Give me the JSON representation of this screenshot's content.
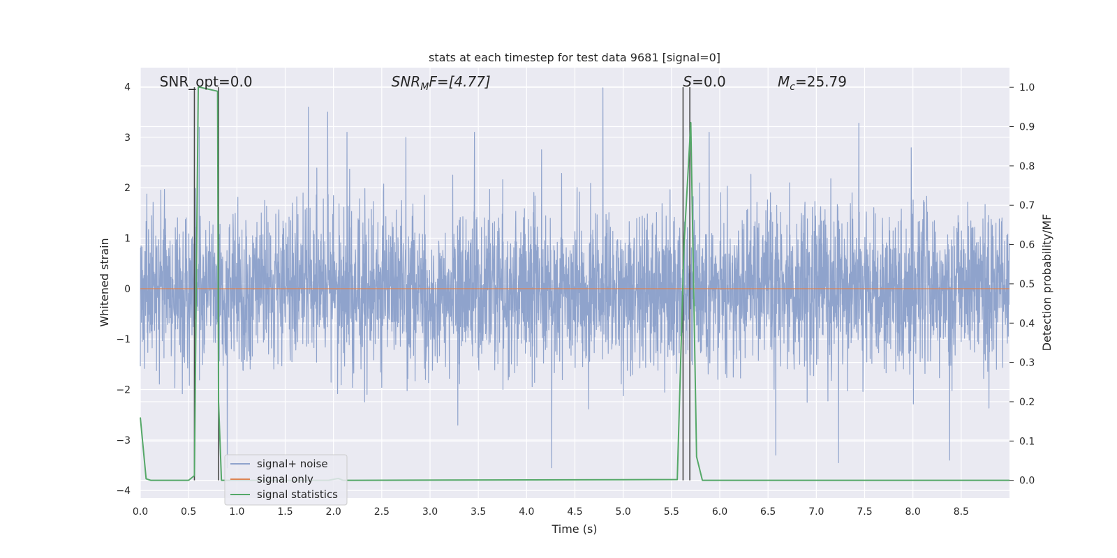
{
  "chart_data": {
    "type": "line",
    "title": "stats at each timestep for test data 9681 [signal=0]",
    "xlabel": "Time (s)",
    "ylabel": "Whitened strain",
    "ylabel_right": "Detection probability/MF",
    "xlim": [
      0,
      9.0
    ],
    "ylim": [
      -4.15,
      4.38
    ],
    "ylim_right": [
      -0.045,
      1.05
    ],
    "x_ticks": [
      0.0,
      0.5,
      1.0,
      1.5,
      2.0,
      2.5,
      3.0,
      3.5,
      4.0,
      4.5,
      5.0,
      5.5,
      6.0,
      6.5,
      7.0,
      7.5,
      8.0,
      8.5
    ],
    "y_ticks": [
      -4,
      -3,
      -2,
      -1,
      0,
      1,
      2,
      3,
      4
    ],
    "y_ticks_right": [
      0.0,
      0.1,
      0.2,
      0.3,
      0.4,
      0.5,
      0.6,
      0.7,
      0.8,
      0.9,
      1.0
    ],
    "grid": true,
    "legend_position": "lower-left",
    "annotations": [
      {
        "main": "SNR_opt=0.0",
        "sub": "",
        "rest": "",
        "x": 0.2
      },
      {
        "main": "SNR",
        "sub": "M",
        "rest": "F=[4.77]",
        "x": 2.6,
        "italic": true
      },
      {
        "main": "S",
        "sub": "",
        "rest": "=0.0",
        "x": 5.62,
        "italic_main": true
      },
      {
        "main": "M",
        "sub": "c",
        "rest": "=25.79",
        "x": 6.6,
        "italic_main": true
      }
    ],
    "vlines": [
      0.56,
      0.81,
      5.62,
      5.69
    ],
    "series": [
      {
        "name": "signal+ noise",
        "color": "#8fa3cc",
        "kind": "noise",
        "seed": 9681,
        "samples": 3600,
        "sigma": 0.78,
        "peaks": [
          {
            "x": 1.74,
            "y": 3.6
          },
          {
            "x": 1.94,
            "y": 3.5
          },
          {
            "x": 4.79,
            "y": 3.98
          },
          {
            "x": 7.44,
            "y": 3.28
          },
          {
            "x": 4.26,
            "y": -3.55
          },
          {
            "x": 7.23,
            "y": -3.45
          },
          {
            "x": 8.38,
            "y": -3.4
          },
          {
            "x": 6.58,
            "y": -3.3
          },
          {
            "x": 0.9,
            "y": -3.55
          },
          {
            "x": 3.46,
            "y": 3.1
          },
          {
            "x": 2.14,
            "y": 3.1
          },
          {
            "x": 0.61,
            "y": 3.2
          },
          {
            "x": 5.89,
            "y": 3.1
          },
          {
            "x": 2.75,
            "y": 3.0
          }
        ]
      },
      {
        "name": "signal only",
        "color": "#dd8452",
        "kind": "flat",
        "value": 0.0
      },
      {
        "name": "signal statistics",
        "color": "#55a868",
        "axis": "right",
        "x": [
          0.0,
          0.06,
          0.11,
          0.5,
          0.56,
          0.6,
          0.62,
          0.8,
          0.81,
          0.84,
          0.87,
          1.95,
          2.05,
          2.1,
          5.56,
          5.63,
          5.7,
          5.76,
          5.82,
          9.0
        ],
        "y": [
          0.16,
          0.004,
          0.0,
          0.0,
          0.012,
          1.0,
          1.0,
          0.99,
          0.2,
          0.0,
          0.0,
          0.0,
          0.005,
          0.0,
          0.002,
          0.6,
          0.91,
          0.06,
          0.0,
          0.0
        ]
      }
    ]
  }
}
